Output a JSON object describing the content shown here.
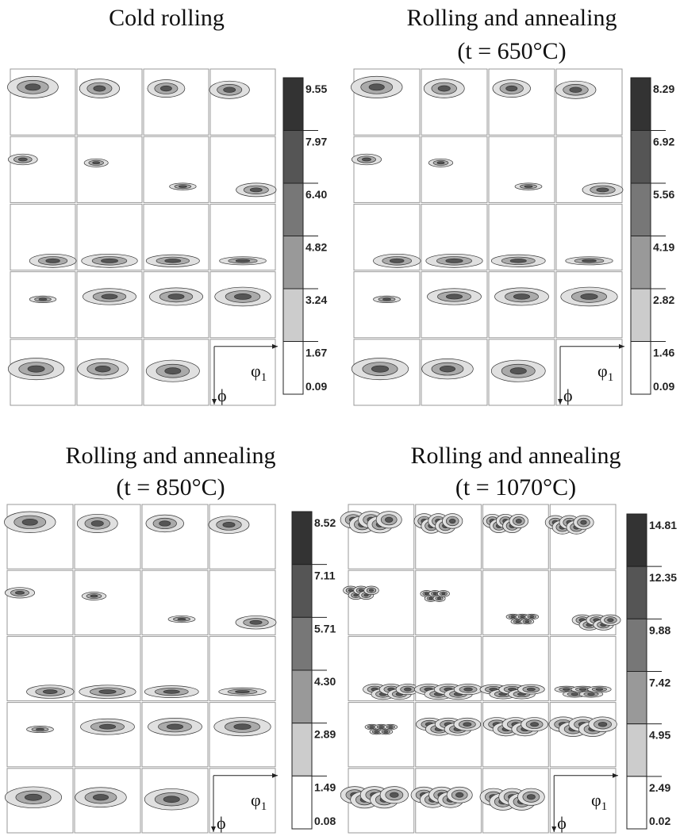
{
  "panels": [
    {
      "title": [
        "Cold rolling"
      ],
      "colorbar": [
        "9.55",
        "7.97",
        "6.40",
        "4.82",
        "3.24",
        "1.67",
        "0.09"
      ],
      "axis_x": "φ",
      "axis_x_sub": "1",
      "axis_y": "ϕ"
    },
    {
      "title": [
        "Rolling and annealing",
        "(t = 650°C)"
      ],
      "colorbar": [
        "8.29",
        "6.92",
        "5.56",
        "4.19",
        "2.82",
        "1.46",
        "0.09"
      ],
      "axis_x": "φ",
      "axis_x_sub": "1",
      "axis_y": "ϕ"
    },
    {
      "title": [
        "Rolling and annealing",
        "(t = 850°C)"
      ],
      "colorbar": [
        "8.52",
        "7.11",
        "5.71",
        "4.30",
        "2.89",
        "1.49",
        "0.08"
      ],
      "axis_x": "φ",
      "axis_x_sub": "1",
      "axis_y": "ϕ"
    },
    {
      "title": [
        "Rolling and annealing",
        "(t = 1070°C)"
      ],
      "colorbar": [
        "14.81",
        "12.35",
        "9.88",
        "7.42",
        "4.95",
        "2.49",
        "0.02"
      ],
      "axis_x": "φ",
      "axis_x_sub": "1",
      "axis_y": "ϕ"
    }
  ]
}
